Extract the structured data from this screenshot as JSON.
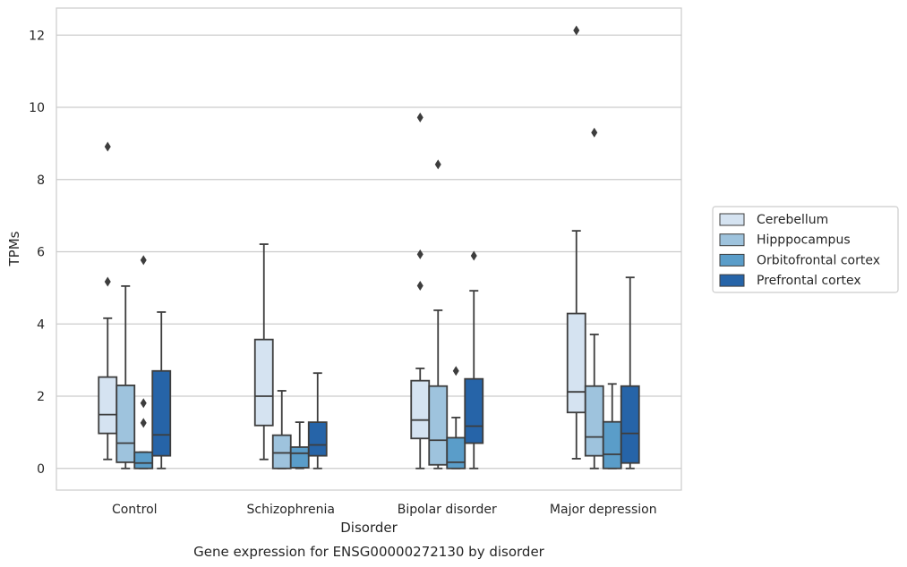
{
  "chart_data": {
    "type": "box",
    "title": "Gene expression for ENSG00000272130 by disorder",
    "xlabel": "Disorder",
    "ylabel": "TPMs",
    "ylim": [
      -0.6,
      12.75
    ],
    "yticks": [
      0,
      2,
      4,
      6,
      8,
      10,
      12
    ],
    "grid": "horizontal",
    "legend_position": "right",
    "categories": [
      "Control",
      "Schizophrenia",
      "Bipolar disorder",
      "Major depression"
    ],
    "series": [
      {
        "name": "Cerebellum",
        "color": "#d5e3f1",
        "boxes": [
          {
            "whislo": 0.25,
            "q1": 0.97,
            "med": 1.49,
            "q3": 2.53,
            "whishi": 4.16,
            "fliers": [
              5.17,
              8.91
            ]
          },
          {
            "whislo": 0.25,
            "q1": 1.19,
            "med": 2.0,
            "q3": 3.57,
            "whishi": 6.21,
            "fliers": []
          },
          {
            "whislo": 0.0,
            "q1": 0.83,
            "med": 1.34,
            "q3": 2.43,
            "whishi": 2.77,
            "fliers": [
              5.06,
              5.93,
              9.72
            ]
          },
          {
            "whislo": 0.27,
            "q1": 1.55,
            "med": 2.12,
            "q3": 4.29,
            "whishi": 6.58,
            "fliers": [
              12.13
            ]
          }
        ]
      },
      {
        "name": "Hipppocampus",
        "color": "#9ec3dd",
        "boxes": [
          {
            "whislo": 0.0,
            "q1": 0.17,
            "med": 0.7,
            "q3": 2.3,
            "whishi": 5.05,
            "fliers": []
          },
          {
            "whislo": 0.0,
            "q1": 0.0,
            "med": 0.43,
            "q3": 0.92,
            "whishi": 2.15,
            "fliers": []
          },
          {
            "whislo": 0.0,
            "q1": 0.1,
            "med": 0.78,
            "q3": 2.28,
            "whishi": 4.38,
            "fliers": [
              8.42
            ]
          },
          {
            "whislo": 0.0,
            "q1": 0.35,
            "med": 0.87,
            "q3": 2.28,
            "whishi": 3.71,
            "fliers": [
              9.3
            ]
          }
        ]
      },
      {
        "name": "Orbitofrontal cortex",
        "color": "#5a9dc9",
        "boxes": [
          {
            "whislo": 0.0,
            "q1": 0.0,
            "med": 0.15,
            "q3": 0.45,
            "whishi": 0.45,
            "fliers": [
              1.26,
              1.81,
              5.77
            ]
          },
          {
            "whislo": 0.0,
            "q1": 0.02,
            "med": 0.42,
            "q3": 0.59,
            "whishi": 1.28,
            "fliers": []
          },
          {
            "whislo": 0.0,
            "q1": 0.0,
            "med": 0.17,
            "q3": 0.85,
            "whishi": 1.41,
            "fliers": [
              2.7
            ]
          },
          {
            "whislo": 0.0,
            "q1": 0.0,
            "med": 0.39,
            "q3": 1.29,
            "whishi": 2.34,
            "fliers": []
          }
        ]
      },
      {
        "name": "Prefrontal cortex",
        "color": "#2664a8",
        "boxes": [
          {
            "whislo": 0.0,
            "q1": 0.35,
            "med": 0.93,
            "q3": 2.7,
            "whishi": 4.33,
            "fliers": []
          },
          {
            "whislo": 0.0,
            "q1": 0.35,
            "med": 0.65,
            "q3": 1.28,
            "whishi": 2.64,
            "fliers": []
          },
          {
            "whislo": 0.0,
            "q1": 0.7,
            "med": 1.17,
            "q3": 2.48,
            "whishi": 4.92,
            "fliers": [
              5.89
            ]
          },
          {
            "whislo": 0.0,
            "q1": 0.15,
            "med": 0.97,
            "q3": 2.28,
            "whishi": 5.29,
            "fliers": []
          }
        ]
      }
    ]
  }
}
